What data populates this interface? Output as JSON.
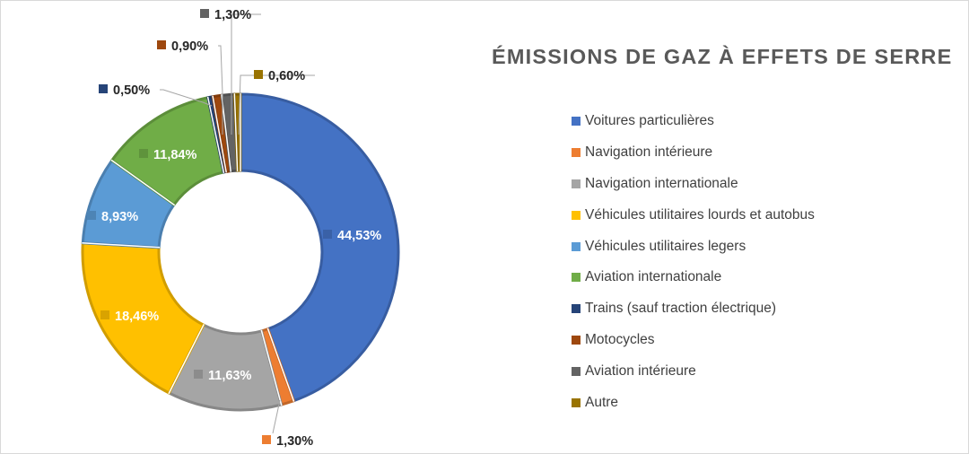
{
  "chart_data": {
    "type": "pie",
    "variant": "donut",
    "title": "ÉMISSIONS DE GAZ À EFFETS DE SERRE",
    "legend_position": "right",
    "categories": [
      "Voitures particulières",
      "Navigation intérieure",
      "Navigation internationale",
      "Véhicules utilitaires lourds et autobus",
      "Véhicules utilitaires legers",
      "Aviation internationale",
      "Trains (sauf traction électrique)",
      "Motocycles",
      "Aviation intérieure",
      "Autre"
    ],
    "values": [
      44.53,
      1.3,
      11.63,
      18.46,
      8.93,
      11.84,
      0.5,
      0.9,
      1.3,
      0.6
    ],
    "data_labels": [
      "44,53%",
      "1,30%",
      "11,63%",
      "18,46%",
      "8,93%",
      "11,84%",
      "0,50%",
      "0,90%",
      "1,30%",
      "0,60%"
    ],
    "colors": [
      "#4472c4",
      "#ed7d31",
      "#a5a5a5",
      "#ffc000",
      "#5b9bd5",
      "#70ad47",
      "#264478",
      "#9e480e",
      "#636363",
      "#997300"
    ]
  }
}
